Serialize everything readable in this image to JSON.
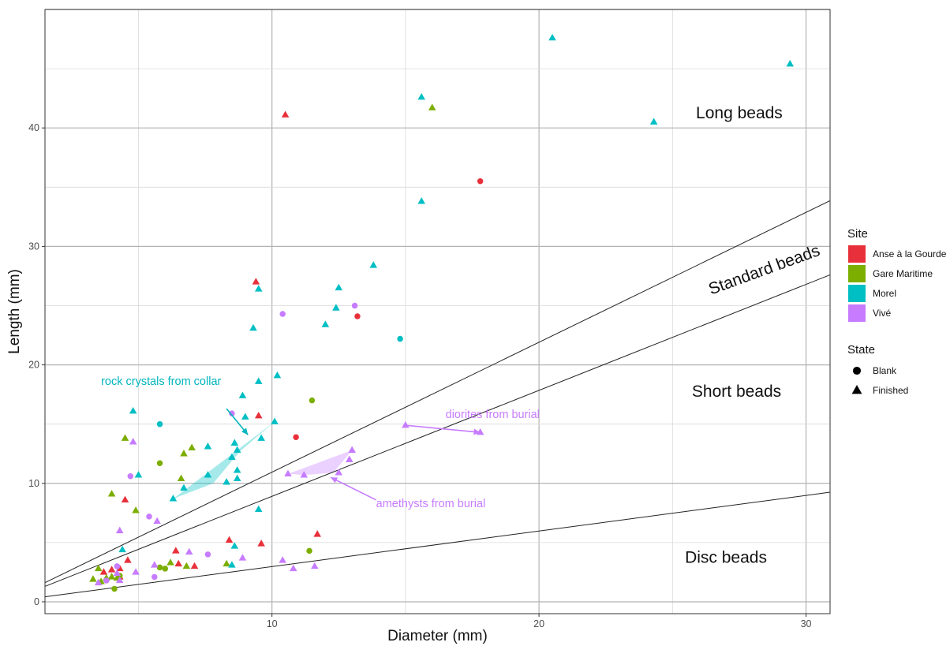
{
  "chart_data": {
    "type": "scatter",
    "xlabel": "Diameter (mm)",
    "ylabel": "Length (mm)",
    "xlim": [
      1.5,
      30.9
    ],
    "ylim": [
      -1,
      50
    ],
    "x_ticks": [
      10,
      20,
      30
    ],
    "y_ticks": [
      0,
      10,
      20,
      30,
      40
    ],
    "grid": true,
    "legend_placement": "right",
    "legend_site": {
      "title": "Site",
      "entries": [
        {
          "name": "Anse à la Gourde",
          "color": "#e8303a"
        },
        {
          "name": "Gare Maritime",
          "color": "#7cae00"
        },
        {
          "name": "Morel",
          "color": "#00bfc4"
        },
        {
          "name": "Vivé",
          "color": "#c77cff"
        }
      ]
    },
    "legend_state": {
      "title": "State",
      "entries": [
        {
          "name": "Blank",
          "shape": "circle"
        },
        {
          "name": "Finished",
          "shape": "triangle"
        }
      ]
    },
    "zone_labels": [
      {
        "text": "Long beads",
        "x": 27.5,
        "y": 40.8,
        "rotate": 0
      },
      {
        "text": "Standard beads",
        "x": 28.5,
        "y": 27.6,
        "rotate": -20
      },
      {
        "text": "Short beads",
        "x": 27.4,
        "y": 17.3,
        "rotate": 0
      },
      {
        "text": "Disc beads",
        "x": 27.0,
        "y": 3.3,
        "rotate": 0
      }
    ],
    "reference_lines": [
      {
        "x0": 1.5,
        "y0": 1.62,
        "x1": 30.9,
        "y1": 33.86
      },
      {
        "x0": 1.5,
        "y0": 1.3,
        "x1": 30.9,
        "y1": 27.6
      },
      {
        "x0": 1.5,
        "y0": 0.42,
        "x1": 30.9,
        "y1": 9.25
      }
    ],
    "annotations": [
      {
        "text": "rock crystals from collar",
        "x": 3.6,
        "y": 18.3,
        "color": "#00b5bd",
        "arrow_from": [
          8.3,
          16.3
        ],
        "arrow_to": [
          9.1,
          14.1
        ]
      },
      {
        "text": "amethysts from burial",
        "x": 13.9,
        "y": 8.0,
        "color": "#c77cff",
        "arrow_from": [
          13.9,
          8.6
        ],
        "arrow_to": [
          12.2,
          10.5
        ]
      },
      {
        "text": "diorites from burial",
        "x": 16.5,
        "y": 15.5,
        "color": "#c77cff",
        "arrow_from": [
          15.0,
          14.9
        ],
        "arrow_to": [
          17.8,
          14.3
        ]
      }
    ],
    "hulls": [
      {
        "name": "rock crystals",
        "color": "#00bfc4",
        "points": [
          [
            6.3,
            8.7
          ],
          [
            10.1,
            15.2
          ],
          [
            8.8,
            12.7
          ],
          [
            7.8,
            10.0
          ]
        ]
      },
      {
        "name": "amethysts",
        "color": "#c77cff",
        "points": [
          [
            10.6,
            10.8
          ],
          [
            13.0,
            12.8
          ],
          [
            12.3,
            10.9
          ],
          [
            11.2,
            10.7
          ]
        ]
      }
    ],
    "series": [
      {
        "site": "Anse à la Gourde",
        "state": "Finished",
        "color": "#e8303a",
        "points": [
          [
            10.5,
            41.1
          ],
          [
            9.4,
            27.0
          ],
          [
            9.5,
            15.7
          ],
          [
            4.5,
            8.6
          ],
          [
            3.7,
            2.5
          ],
          [
            4.0,
            2.7
          ],
          [
            4.3,
            2.8
          ],
          [
            4.6,
            3.5
          ],
          [
            4.3,
            2.1
          ],
          [
            6.4,
            4.3
          ],
          [
            7.1,
            3.0
          ],
          [
            8.4,
            5.2
          ],
          [
            9.6,
            4.9
          ],
          [
            11.7,
            5.7
          ],
          [
            6.5,
            3.2
          ]
        ]
      },
      {
        "site": "Anse à la Gourde",
        "state": "Blank",
        "color": "#e8303a",
        "points": [
          [
            17.8,
            35.5
          ],
          [
            13.2,
            24.1
          ],
          [
            10.9,
            13.9
          ]
        ]
      },
      {
        "site": "Gare Maritime",
        "state": "Finished",
        "color": "#7cae00",
        "points": [
          [
            16.0,
            41.7
          ],
          [
            4.5,
            13.8
          ],
          [
            4.0,
            9.1
          ],
          [
            6.7,
            12.5
          ],
          [
            7.0,
            13.0
          ],
          [
            6.6,
            10.4
          ],
          [
            4.9,
            7.7
          ],
          [
            3.5,
            2.8
          ],
          [
            3.3,
            1.9
          ],
          [
            3.6,
            1.7
          ],
          [
            4.0,
            2.1
          ],
          [
            3.8,
            2.0
          ],
          [
            6.2,
            3.3
          ],
          [
            6.8,
            3.0
          ],
          [
            8.3,
            3.2
          ],
          [
            4.2,
            2.0
          ]
        ]
      },
      {
        "site": "Gare Maritime",
        "state": "Blank",
        "color": "#7cae00",
        "points": [
          [
            11.5,
            17.0
          ],
          [
            5.8,
            11.7
          ],
          [
            5.8,
            2.9
          ],
          [
            11.4,
            4.3
          ],
          [
            4.1,
            1.1
          ],
          [
            6.0,
            2.8
          ],
          [
            4.3,
            2.2
          ]
        ]
      },
      {
        "site": "Morel",
        "state": "Finished",
        "color": "#00bfc4",
        "points": [
          [
            20.5,
            47.6
          ],
          [
            29.4,
            45.4
          ],
          [
            24.3,
            40.5
          ],
          [
            15.6,
            42.6
          ],
          [
            15.6,
            33.8
          ],
          [
            13.8,
            28.4
          ],
          [
            12.5,
            26.5
          ],
          [
            12.4,
            24.8
          ],
          [
            12.0,
            23.4
          ],
          [
            9.5,
            26.4
          ],
          [
            9.3,
            23.1
          ],
          [
            10.2,
            19.1
          ],
          [
            9.5,
            18.6
          ],
          [
            8.9,
            17.4
          ],
          [
            9.0,
            15.6
          ],
          [
            10.1,
            15.2
          ],
          [
            9.6,
            13.8
          ],
          [
            8.6,
            13.4
          ],
          [
            8.7,
            12.8
          ],
          [
            8.5,
            12.2
          ],
          [
            7.6,
            13.1
          ],
          [
            6.7,
            9.6
          ],
          [
            6.3,
            8.7
          ],
          [
            4.8,
            16.1
          ],
          [
            5.0,
            10.7
          ],
          [
            7.6,
            10.7
          ],
          [
            8.7,
            11.1
          ],
          [
            8.7,
            10.4
          ],
          [
            8.3,
            10.1
          ],
          [
            4.4,
            4.4
          ],
          [
            8.6,
            4.7
          ],
          [
            9.5,
            7.8
          ],
          [
            8.5,
            3.1
          ]
        ]
      },
      {
        "site": "Morel",
        "state": "Blank",
        "color": "#00bfc4",
        "points": [
          [
            14.8,
            22.2
          ],
          [
            5.8,
            15.0
          ]
        ]
      },
      {
        "site": "Vivé",
        "state": "Finished",
        "color": "#c77cff",
        "points": [
          [
            13.0,
            12.8
          ],
          [
            12.9,
            12.0
          ],
          [
            12.5,
            10.9
          ],
          [
            11.2,
            10.7
          ],
          [
            10.6,
            10.8
          ],
          [
            15.0,
            14.9
          ],
          [
            17.8,
            14.3
          ],
          [
            4.8,
            13.5
          ],
          [
            4.3,
            6.0
          ],
          [
            5.7,
            6.8
          ],
          [
            4.9,
            2.5
          ],
          [
            4.3,
            1.8
          ],
          [
            5.6,
            3.1
          ],
          [
            6.9,
            4.2
          ],
          [
            8.9,
            3.7
          ],
          [
            10.4,
            3.5
          ],
          [
            10.8,
            2.8
          ],
          [
            11.6,
            3.0
          ],
          [
            3.5,
            1.6
          ],
          [
            4.2,
            2.4
          ]
        ]
      },
      {
        "site": "Vivé",
        "state": "Blank",
        "color": "#c77cff",
        "points": [
          [
            10.4,
            24.3
          ],
          [
            13.1,
            25.0
          ],
          [
            8.5,
            15.9
          ],
          [
            4.7,
            10.6
          ],
          [
            5.4,
            7.2
          ],
          [
            7.6,
            4.0
          ],
          [
            5.6,
            2.1
          ],
          [
            3.8,
            1.8
          ],
          [
            4.2,
            3.0
          ]
        ]
      }
    ]
  }
}
